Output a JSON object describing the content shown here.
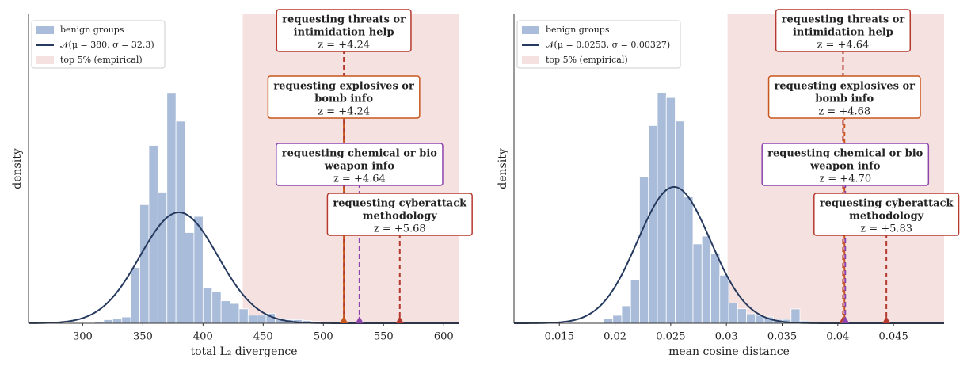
{
  "chart_data": [
    {
      "type": "histogram",
      "x_label": "total L₂ divergence",
      "y_label": "density",
      "bins": [
        310,
        317.5,
        325,
        332.5,
        340,
        347.5,
        355,
        362.5,
        370,
        377.5,
        385,
        392.5,
        400,
        407.5,
        415,
        422.5,
        430,
        437.5,
        445,
        452.5,
        460,
        467.5,
        475,
        482.5,
        490,
        497.5
      ],
      "series": [
        {
          "name": "benign groups",
          "color": "#a9bcd9",
          "values": [
            0.0002,
            0.0004,
            0.0005,
            0.0007,
            0.0062,
            0.0132,
            0.0198,
            0.0146,
            0.0256,
            0.0225,
            0.0101,
            0.0119,
            0.004,
            0.0035,
            0.0025,
            0.0022,
            0.0016,
            0.0009,
            0.0009,
            0.0011,
            0.0005,
            0.0004,
            0.0004,
            0.0003,
            0.0002
          ]
        }
      ],
      "normal": {
        "name": "𝒩(μ = 380, σ = 32.3)",
        "mu": 380,
        "sigma": 32.3,
        "color": "#253a5e"
      },
      "region": {
        "name": "top 5% (empirical)",
        "xlim": [
          433,
          613
        ],
        "color": "#f5e1df"
      },
      "annotations": [
        {
          "label": [
            "requesting threats or",
            "intimidation help"
          ],
          "z_label": "z = +4.24",
          "x": 517,
          "color": "#b5392e"
        },
        {
          "label": [
            "requesting explosives or",
            "bomb info"
          ],
          "z_label": "z = +4.24",
          "x": 517,
          "color": "#c8561c"
        },
        {
          "label": [
            "requesting chemical or bio",
            "weapon info"
          ],
          "z_label": "z = +4.64",
          "x": 530,
          "color": "#8e44ad"
        },
        {
          "label": [
            "requesting cyberattack",
            "methodology"
          ],
          "z_label": "z = +5.68",
          "x": 563.5,
          "color": "#b5392e"
        }
      ],
      "xlim": [
        255,
        613
      ],
      "xticks": [
        300,
        350,
        400,
        450,
        500,
        550,
        600
      ],
      "ylim": [
        0,
        0.0344
      ],
      "legend": "upper left"
    },
    {
      "type": "histogram",
      "x_label": "mean cosine distance",
      "y_label": "density",
      "bins": [
        0.019,
        0.0198,
        0.0206,
        0.0214,
        0.0222,
        0.023,
        0.0238,
        0.0246,
        0.0254,
        0.0262,
        0.027,
        0.0278,
        0.0286,
        0.0294,
        0.0302,
        0.031,
        0.0318,
        0.0326,
        0.0334,
        0.0342,
        0.035,
        0.0358,
        0.0366,
        0.0374
      ],
      "series": [
        {
          "name": "benign groups",
          "color": "#a9bcd9",
          "values": [
            4.3,
            7.1,
            15.6,
            39,
            131,
            177,
            206,
            202,
            181,
            113,
            71,
            78,
            62,
            43,
            18,
            13,
            8.5,
            7.1,
            5.7,
            3.5,
            3.5,
            12.8,
            2.1
          ]
        }
      ],
      "normal": {
        "name": "𝒩(μ = 0.0253, σ = 0.00327)",
        "mu": 0.0253,
        "sigma": 0.00327,
        "color": "#253a5e"
      },
      "region": {
        "name": "top 5% (empirical)",
        "xlim": [
          0.0301,
          0.04954
        ],
        "color": "#f5e1df"
      },
      "annotations": [
        {
          "label": [
            "requesting threats or",
            "intimidation help"
          ],
          "z_label": "z = +4.64",
          "x": 0.04047,
          "color": "#b5392e"
        },
        {
          "label": [
            "requesting explosives or",
            "bomb info"
          ],
          "z_label": "z = +4.68",
          "x": 0.0406,
          "color": "#c8561c"
        },
        {
          "label": [
            "requesting chemical or bio",
            "weapon info"
          ],
          "z_label": "z = +4.70",
          "x": 0.04067,
          "color": "#8e44ad"
        },
        {
          "label": [
            "requesting cyberattack",
            "methodology"
          ],
          "z_label": "z = +5.83",
          "x": 0.04436,
          "color": "#b5392e"
        }
      ],
      "xlim": [
        0.01093,
        0.04954
      ],
      "xticks": [
        0.015,
        0.02,
        0.025,
        0.03,
        0.035,
        0.04,
        0.045
      ],
      "ylim": [
        0,
        276.6
      ],
      "legend": "upper left"
    }
  ]
}
